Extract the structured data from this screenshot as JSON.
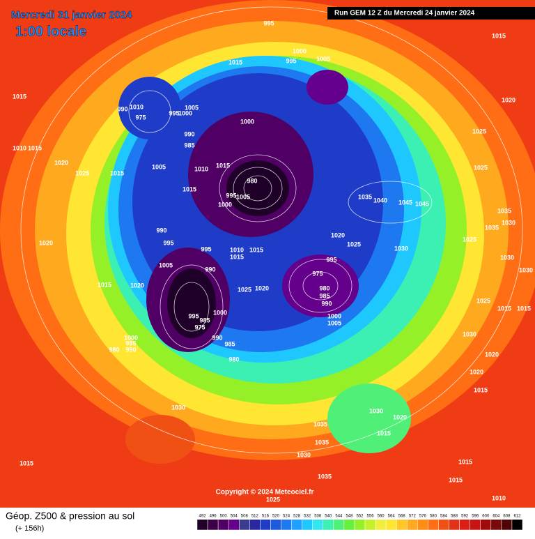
{
  "header": {
    "date": "Mercredi 31 janvier 2024",
    "time": "1:00 locale",
    "run": "Run GEM 12 Z du Mercredi 24 janvier 2024"
  },
  "footer": {
    "title": "Géop. Z500 & pression au sol",
    "subtitle": "(+ 156h)",
    "copyright": "Copyright © 2024 Meteociel.fr"
  },
  "legend": {
    "labels": [
      "492",
      "496",
      "500",
      "504",
      "508",
      "512",
      "516",
      "520",
      "524",
      "528",
      "532",
      "536",
      "540",
      "544",
      "548",
      "552",
      "556",
      "560",
      "564",
      "568",
      "572",
      "576",
      "580",
      "584",
      "588",
      "592",
      "596",
      "600",
      "604",
      "608",
      "612"
    ],
    "colors": [
      "#1e0028",
      "#3c0046",
      "#500064",
      "#64008c",
      "#3c3c8c",
      "#2828a0",
      "#1e3cc8",
      "#1e5adc",
      "#1e78f0",
      "#1ea0ff",
      "#1ec8ff",
      "#32e6f0",
      "#3cf0b4",
      "#50f078",
      "#64f03c",
      "#96f028",
      "#c8f028",
      "#f0f03c",
      "#ffe632",
      "#ffc828",
      "#ffaa1e",
      "#ff8c14",
      "#ff6e14",
      "#f05014",
      "#e63214",
      "#dc1e14",
      "#c81414",
      "#a00a0a",
      "#780a0a",
      "#500505",
      "#000000"
    ]
  },
  "isobars": [
    "995",
    "1015",
    "1000",
    "995",
    "1005",
    "1015",
    "1015",
    "990",
    "1010",
    "975",
    "995",
    "1000",
    "1005",
    "1000",
    "1020",
    "1025",
    "990",
    "985",
    "1010",
    "1015",
    "1020",
    "1025",
    "1005",
    "1010",
    "1015",
    "1015",
    "980",
    "995",
    "1005",
    "1000",
    "1015",
    "1035",
    "1040",
    "1045",
    "1045",
    "1025",
    "1035",
    "1030",
    "1035",
    "990",
    "995",
    "1020",
    "1020",
    "1025",
    "1030",
    "1025",
    "995",
    "1010",
    "1015",
    "1015",
    "995",
    "1005",
    "990",
    "975",
    "980",
    "985",
    "990",
    "1025",
    "1020",
    "1015",
    "1020",
    "1000",
    "1005",
    "1030",
    "1030",
    "1025",
    "1015",
    "1015",
    "995",
    "985",
    "975",
    "1000",
    "990",
    "985",
    "980",
    "1000",
    "995",
    "990",
    "980",
    "1030",
    "1020",
    "1020",
    "1015",
    "1030",
    "1020",
    "1035",
    "1015",
    "1035",
    "1030",
    "1015",
    "1015",
    "1030",
    "1015",
    "1035",
    "1010",
    "1025"
  ]
}
